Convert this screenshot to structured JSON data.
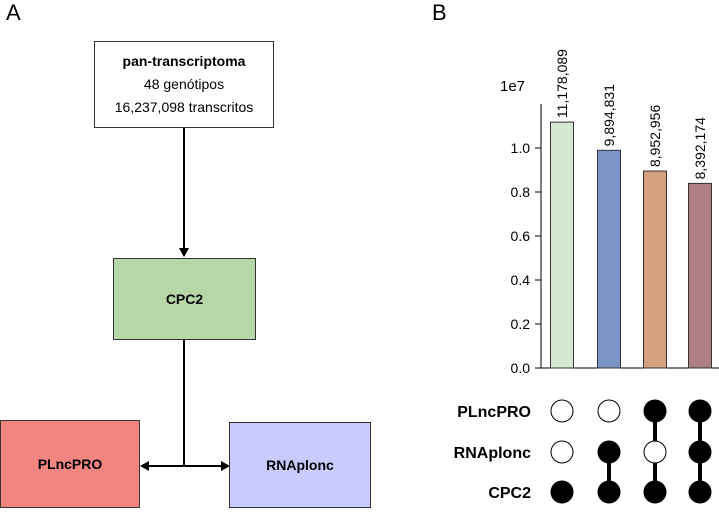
{
  "panels": {
    "a": "A",
    "b": "B"
  },
  "flow": {
    "top": {
      "title": "pan-transcriptoma",
      "line2": "48 genótipos",
      "line3": "16,237,098 transcritos"
    },
    "middle": {
      "label": "CPC2",
      "color": "#b6d7a8"
    },
    "left": {
      "label": "PLncPRO",
      "color": "#f28482"
    },
    "right": {
      "label": "RNAplonc",
      "color": "#c9cbff"
    }
  },
  "chart_data": {
    "type": "upset",
    "multiplier_label": "1e7",
    "ylim": [
      0,
      1.2
    ],
    "yticks": [
      "0.0",
      "0.2",
      "0.4",
      "0.6",
      "0.8",
      "1.0"
    ],
    "bars": [
      {
        "value": 11178089,
        "label": "11,178,089",
        "color": "#d5e8d0",
        "sets": [
          "CPC2"
        ]
      },
      {
        "value": 9894831,
        "label": "9,894,831",
        "color": "#7b96c6",
        "sets": [
          "RNAplonc",
          "CPC2"
        ]
      },
      {
        "value": 8952956,
        "label": "8,952,956",
        "color": "#d4a07f",
        "sets": [
          "PLncPRO",
          "CPC2"
        ]
      },
      {
        "value": 8392174,
        "label": "8,392,174",
        "color": "#ad7f85",
        "sets": [
          "PLncPRO",
          "RNAplonc",
          "CPC2"
        ]
      }
    ],
    "set_names": [
      "PLncPRO",
      "RNAplonc",
      "CPC2"
    ]
  }
}
